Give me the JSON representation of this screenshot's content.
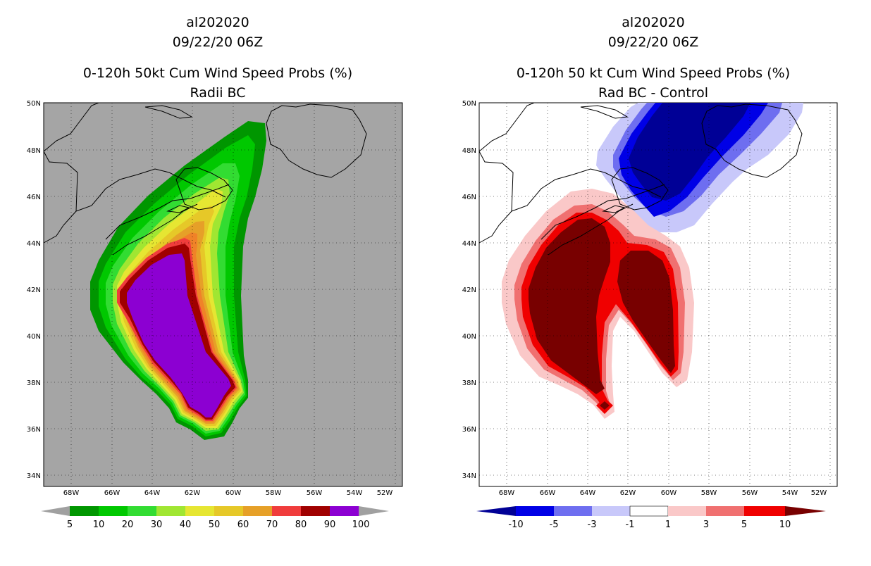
{
  "left": {
    "storm_id": "al202020",
    "datetime": "09/22/20 06Z",
    "title": "0-120h 50kt Cum Wind Speed Probs (%)",
    "subtitle": "Radii BC",
    "colorbar": {
      "labels": [
        "5",
        "10",
        "20",
        "30",
        "40",
        "50",
        "60",
        "70",
        "80",
        "90",
        "100"
      ],
      "colors": [
        "#009600",
        "#00c800",
        "#32dc32",
        "#a0e632",
        "#e6e632",
        "#e6c828",
        "#e6a028",
        "#f08228",
        "#f03c3c",
        "#a00000",
        "#8c00d2"
      ],
      "end_color": "#a0a0a0"
    }
  },
  "right": {
    "storm_id": "al202020",
    "datetime": "09/22/20 06Z",
    "title": "0-120h 50 kt Cum Wind Speed Probs (%)",
    "subtitle": "Rad BC - Control",
    "colorbar": {
      "labels": [
        "-10",
        "-5",
        "-3",
        "-1",
        "1",
        "3",
        "5",
        "10"
      ],
      "colors": [
        "#0000e6",
        "#6e6ef0",
        "#c8c8fa",
        "#ffffff",
        "#fac8c8",
        "#f07070",
        "#f00000",
        "#780000"
      ],
      "end_low": "#000096",
      "end_high": "#780000"
    }
  },
  "axes": {
    "lat_labels": [
      "50N",
      "48N",
      "46N",
      "44N",
      "42N",
      "40N",
      "38N",
      "36N",
      "34N"
    ],
    "lon_labels": [
      "68W",
      "66W",
      "64W",
      "62W",
      "60W",
      "58W",
      "56W",
      "54W",
      "52W"
    ]
  },
  "colors": {
    "ocean_left": "#a5a5a5",
    "land_left": "#a5a5a5",
    "coast": "#000000"
  }
}
